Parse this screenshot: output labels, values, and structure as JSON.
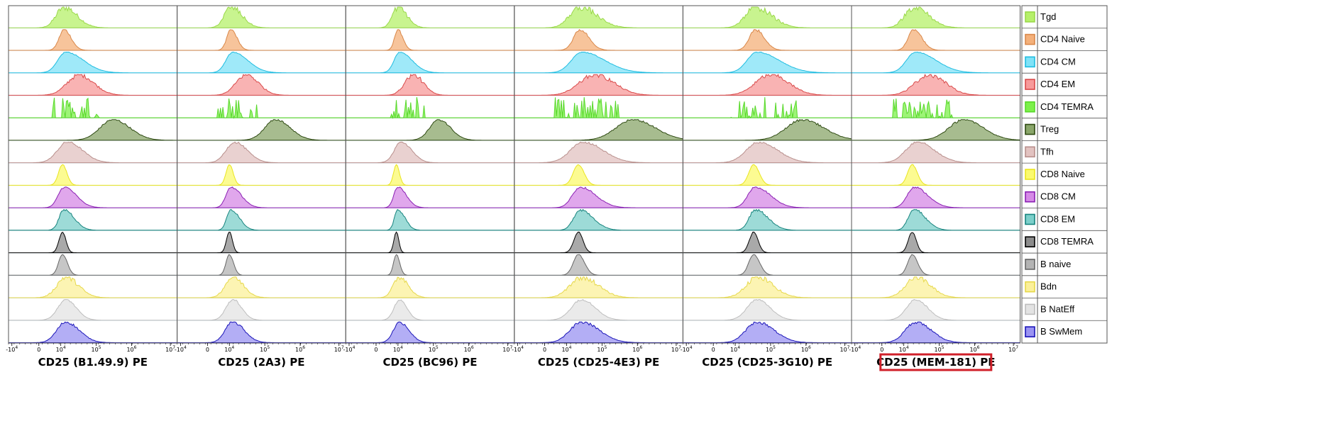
{
  "chart_data": {
    "type": "histogram",
    "x_scale": "biexponential",
    "x_ticks": [
      "-10",
      "0",
      "10",
      "10",
      "10",
      "10"
    ],
    "x_tick_exponents": [
      "4",
      "",
      "4",
      "5",
      "6",
      "7"
    ],
    "xlim": [
      -10000,
      10000000
    ],
    "highlighted_panel": "CD25 (MEM-181) PE",
    "highlight_color": "#d0202a",
    "panels": [
      {
        "title": "CD25 (B1.49.9) PE",
        "width_scale": 1.0,
        "shift": 0.0
      },
      {
        "title": "CD25 (2A3) PE",
        "width_scale": 0.85,
        "shift": -0.01
      },
      {
        "title": "CD25 (BC96) PE",
        "width_scale": 0.7,
        "shift": -0.02
      },
      {
        "title": "CD25 (CD25-4E3) PE",
        "width_scale": 1.3,
        "shift": 0.06
      },
      {
        "title": "CD25 (CD25-3G10) PE",
        "width_scale": 1.25,
        "shift": 0.1
      },
      {
        "title": "CD25 (MEM-181) PE",
        "width_scale": 1.15,
        "shift": 0.04
      }
    ],
    "series": [
      {
        "name": "Tgd",
        "color": "#b6f06a",
        "center": 0.33,
        "width": 0.08,
        "skew": 1.6,
        "noise": 0.35
      },
      {
        "name": "CD4 Naive",
        "color": "#f4b07a",
        "center": 0.33,
        "width": 0.05,
        "skew": 1.4,
        "noise": 0.15
      },
      {
        "name": "CD4 CM",
        "color": "#7fe2f7",
        "center": 0.34,
        "width": 0.08,
        "skew": 2.2,
        "noise": 0.05
      },
      {
        "name": "CD4 EM",
        "color": "#f79a9a",
        "center": 0.42,
        "width": 0.12,
        "skew": 1.2,
        "noise": 0.25
      },
      {
        "name": "CD4 TEMRA",
        "color": "#7cf04a",
        "center": 0.38,
        "width": 0.12,
        "skew": 1.0,
        "noise": 1.0
      },
      {
        "name": "Treg",
        "color": "#8aa66a",
        "center": 0.62,
        "width": 0.13,
        "skew": 1.3,
        "noise": 0.12
      },
      {
        "name": "Tfh",
        "color": "#e2c2c0",
        "center": 0.35,
        "width": 0.1,
        "skew": 1.5,
        "noise": 0.12
      },
      {
        "name": "CD8 Naive",
        "color": "#fbfa6e",
        "center": 0.32,
        "width": 0.04,
        "skew": 1.1,
        "noise": 0.05
      },
      {
        "name": "CD8 CM",
        "color": "#d58ae6",
        "center": 0.33,
        "width": 0.06,
        "skew": 2.0,
        "noise": 0.1
      },
      {
        "name": "CD8 EM",
        "color": "#7ccfca",
        "center": 0.33,
        "width": 0.05,
        "skew": 2.0,
        "noise": 0.15
      },
      {
        "name": "CD8 TEMRA",
        "color": "#8c8c8c",
        "center": 0.32,
        "width": 0.035,
        "skew": 1.0,
        "noise": 0.05
      },
      {
        "name": "B naive",
        "color": "#b3b3b3",
        "center": 0.32,
        "width": 0.04,
        "skew": 1.2,
        "noise": 0.05
      },
      {
        "name": "Bdn",
        "color": "#fbf09a",
        "center": 0.34,
        "width": 0.09,
        "skew": 1.4,
        "noise": 0.3
      },
      {
        "name": "B NatEff",
        "color": "#e3e3e3",
        "center": 0.34,
        "width": 0.08,
        "skew": 1.3,
        "noise": 0.1
      },
      {
        "name": "B SwMem",
        "color": "#9a93f2",
        "center": 0.34,
        "width": 0.09,
        "skew": 1.5,
        "noise": 0.15
      }
    ],
    "series_line_colors": [
      "#9ad84a",
      "#d9884a",
      "#1fbce0",
      "#d94a4a",
      "#58d82a",
      "#2e4a12",
      "#b88f8c",
      "#e9e41f",
      "#8a1fb3",
      "#17847e",
      "#000000",
      "#666666",
      "#e6d84a",
      "#bdbdbd",
      "#1a14b8"
    ]
  }
}
